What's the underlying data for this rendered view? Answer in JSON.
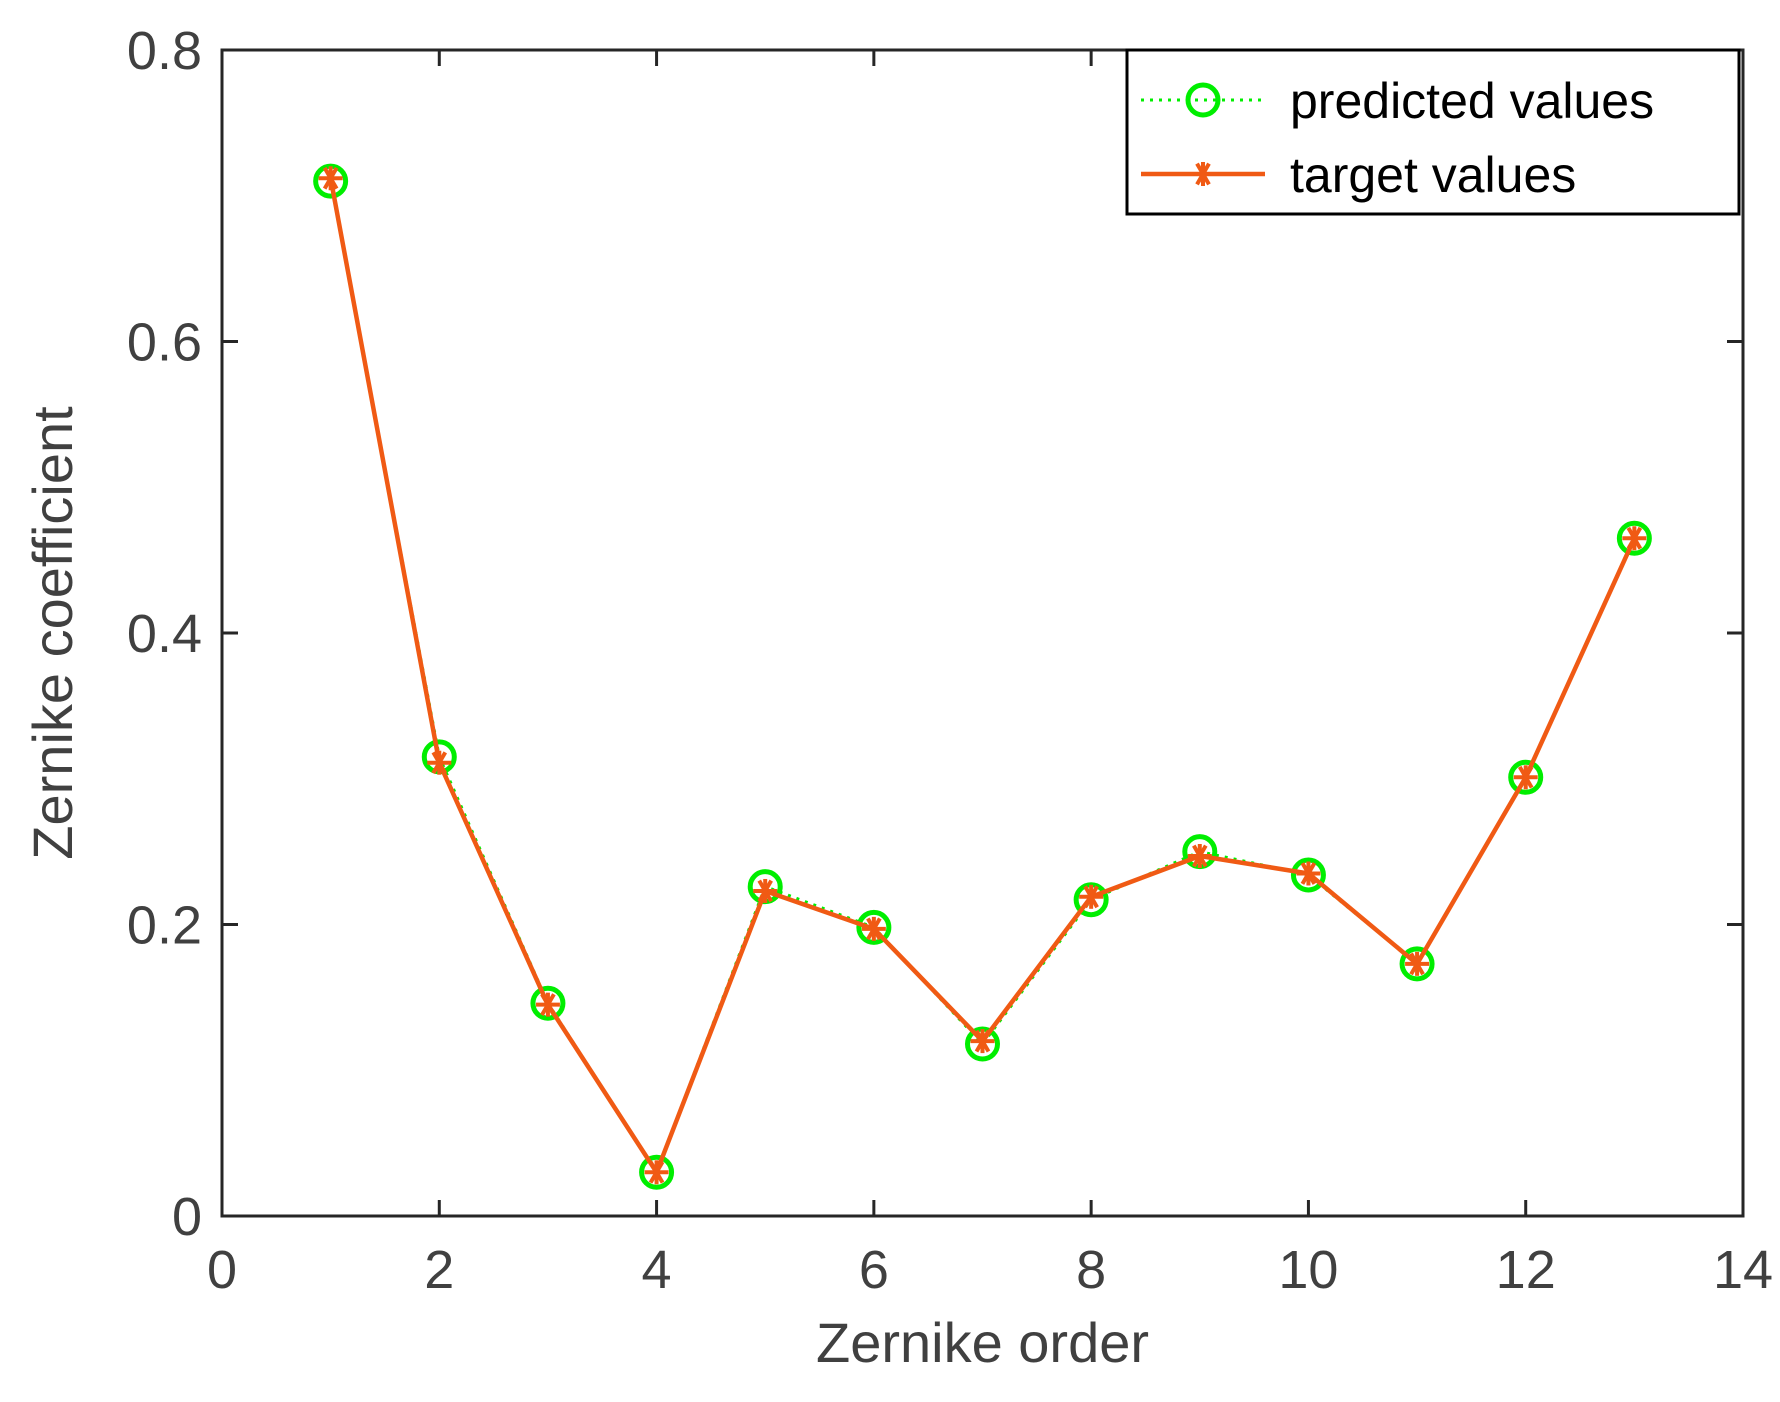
{
  "chart_data": {
    "type": "line",
    "title": "",
    "xlabel": "Zernike order",
    "ylabel": "Zernike coefficient",
    "xlim": [
      0,
      14
    ],
    "ylim": [
      0,
      0.8
    ],
    "xticks": [
      "0",
      "2",
      "4",
      "6",
      "8",
      "10",
      "12",
      "14"
    ],
    "yticks": [
      "0",
      "0.2",
      "0.4",
      "0.6",
      "0.8"
    ],
    "grid": false,
    "legend_position": "top-right",
    "x": [
      1,
      2,
      3,
      4,
      5,
      6,
      7,
      8,
      9,
      10,
      11,
      12,
      13
    ],
    "series": [
      {
        "name": "predicted values",
        "color": "#00ee00",
        "line_style": "dotted",
        "marker": "circle",
        "values": [
          0.71,
          0.315,
          0.146,
          0.03,
          0.226,
          0.198,
          0.118,
          0.217,
          0.25,
          0.234,
          0.173,
          0.301,
          0.465
        ]
      },
      {
        "name": "target values",
        "color": "#f05a14",
        "line_style": "solid",
        "marker": "asterisk",
        "values": [
          0.712,
          0.311,
          0.145,
          0.03,
          0.223,
          0.197,
          0.12,
          0.219,
          0.247,
          0.235,
          0.173,
          0.301,
          0.465
        ]
      }
    ]
  }
}
